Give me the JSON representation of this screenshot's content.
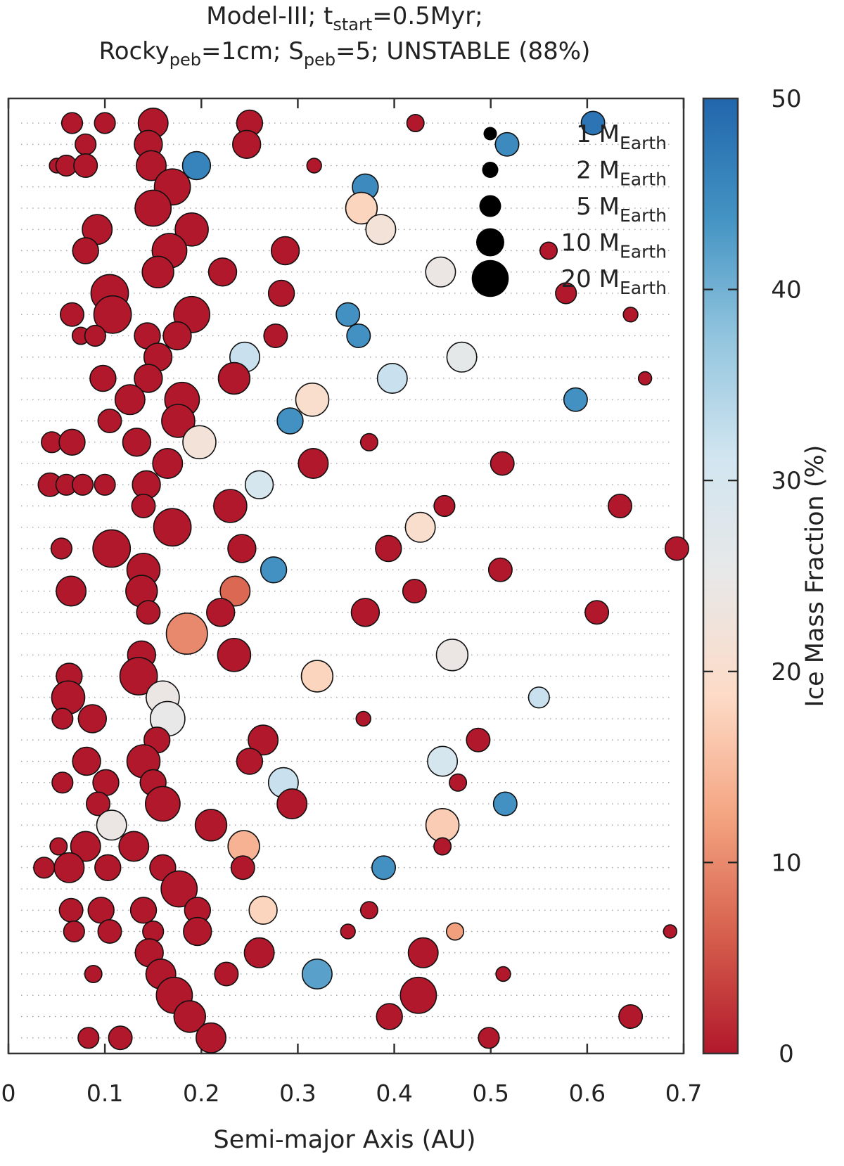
{
  "chart_data": {
    "type": "scatter",
    "title_line1": {
      "a": "Model-III; t",
      "sub": "start",
      "b": "=0.5Myr;"
    },
    "title_line2": {
      "a": "Rocky",
      "sub1": "peb",
      "b": "=1cm; S",
      "sub2": "peb",
      "c": "=5; UNSTABLE (88%)"
    },
    "xlabel": "Semi-major Axis (AU)",
    "xlim": [
      0,
      0.7
    ],
    "xticks": [
      "0",
      "0.1",
      "0.2",
      "0.3",
      "0.4",
      "0.5",
      "0.6",
      "0.7"
    ],
    "n_systems": 44,
    "grid": "dotted horizontal rows",
    "colorbar": {
      "label": "Ice Mass Fraction (%)",
      "range": [
        0,
        50
      ],
      "ticks": [
        "0",
        "10",
        "20",
        "30",
        "40",
        "50"
      ],
      "colormap": [
        "#b2182b",
        "#d6604d",
        "#f4a582",
        "#fddbc7",
        "#e8e8e8",
        "#d1e5f0",
        "#92c5de",
        "#4393c3",
        "#2166ac"
      ]
    },
    "size_legend": [
      {
        "label": "1 M",
        "sub": "Earth",
        "mass": 1
      },
      {
        "label": "2 M",
        "sub": "Earth",
        "mass": 2
      },
      {
        "label": "5 M",
        "sub": "Earth",
        "mass": 5
      },
      {
        "label": "10 M",
        "sub": "Earth",
        "mass": 10
      },
      {
        "label": "20 M",
        "sub": "Earth",
        "mass": 20
      }
    ],
    "systems": [
      [
        [
          0.066,
          2,
          0
        ],
        [
          0.1,
          2,
          0
        ],
        [
          0.15,
          6,
          0
        ],
        [
          0.25,
          4,
          0
        ],
        [
          0.422,
          1,
          0
        ],
        [
          0.606,
          3,
          48
        ]
      ],
      [
        [
          0.08,
          2,
          0
        ],
        [
          0.145,
          5,
          0
        ],
        [
          0.247,
          5,
          0
        ],
        [
          0.517,
          3,
          45
        ]
      ],
      [
        [
          0.05,
          0.5,
          0
        ],
        [
          0.06,
          2,
          0
        ],
        [
          0.08,
          3,
          0
        ],
        [
          0.148,
          6,
          0
        ],
        [
          0.195,
          5,
          46
        ],
        [
          0.317,
          0.5,
          0
        ]
      ],
      [
        [
          0.17,
          10,
          0
        ],
        [
          0.37,
          4,
          45
        ]
      ],
      [
        [
          0.15,
          10,
          0
        ],
        [
          0.366,
          7,
          18
        ]
      ],
      [
        [
          0.092,
          6,
          0
        ],
        [
          0.19,
          8,
          0
        ],
        [
          0.386,
          6,
          22
        ]
      ],
      [
        [
          0.08,
          4,
          0
        ],
        [
          0.167,
          9,
          0
        ],
        [
          0.287,
          5,
          0
        ],
        [
          0.56,
          1,
          0
        ]
      ],
      [
        [
          0.155,
          7,
          0
        ],
        [
          0.222,
          5,
          0
        ],
        [
          0.448,
          6,
          24
        ]
      ],
      [
        [
          0.105,
          11,
          0
        ],
        [
          0.283,
          4,
          0
        ],
        [
          0.578,
          2,
          0
        ]
      ],
      [
        [
          0.066,
          3,
          0
        ],
        [
          0.108,
          11,
          0
        ],
        [
          0.19,
          10,
          0
        ],
        [
          0.352,
          3,
          44
        ],
        [
          0.645,
          0.5,
          0
        ]
      ],
      [
        [
          0.075,
          1,
          0
        ],
        [
          0.09,
          2,
          0
        ],
        [
          0.144,
          4,
          0
        ],
        [
          0.175,
          5,
          0
        ],
        [
          0.277,
          3,
          0
        ],
        [
          0.363,
          3,
          44
        ]
      ],
      [
        [
          0.155,
          5,
          0
        ],
        [
          0.245,
          6,
          32
        ],
        [
          0.47,
          6,
          26
        ]
      ],
      [
        [
          0.098,
          4,
          0
        ],
        [
          0.145,
          5,
          0
        ],
        [
          0.234,
          7,
          0
        ],
        [
          0.398,
          6,
          32
        ],
        [
          0.66,
          0.3,
          0
        ]
      ],
      [
        [
          0.126,
          6,
          0
        ],
        [
          0.18,
          9,
          0
        ],
        [
          0.315,
          8,
          20
        ],
        [
          0.588,
          3,
          44
        ]
      ],
      [
        [
          0.105,
          3,
          0
        ],
        [
          0.176,
          8,
          0
        ],
        [
          0.292,
          4,
          44
        ]
      ],
      [
        [
          0.045,
          2,
          0
        ],
        [
          0.066,
          4,
          0
        ],
        [
          0.133,
          5,
          0
        ],
        [
          0.198,
          8,
          22
        ],
        [
          0.374,
          1,
          0
        ]
      ],
      [
        [
          0.165,
          6,
          0
        ],
        [
          0.316,
          6,
          0
        ],
        [
          0.512,
          3,
          0
        ]
      ],
      [
        [
          0.043,
          3,
          0
        ],
        [
          0.06,
          2,
          0
        ],
        [
          0.077,
          2,
          0
        ],
        [
          0.1,
          2,
          0
        ],
        [
          0.143,
          5,
          0
        ],
        [
          0.26,
          5,
          30
        ]
      ],
      [
        [
          0.14,
          3,
          0
        ],
        [
          0.23,
          8,
          0
        ],
        [
          0.452,
          2,
          0
        ],
        [
          0.634,
          3,
          0
        ]
      ],
      [
        [
          0.17,
          11,
          0
        ],
        [
          0.427,
          6,
          20
        ]
      ],
      [
        [
          0.055,
          2,
          0
        ],
        [
          0.107,
          11,
          0
        ],
        [
          0.242,
          5,
          0
        ],
        [
          0.394,
          4,
          0
        ],
        [
          0.693,
          3,
          0
        ]
      ],
      [
        [
          0.14,
          8,
          0
        ],
        [
          0.275,
          4,
          44
        ],
        [
          0.51,
          3,
          0
        ]
      ],
      [
        [
          0.065,
          6,
          0
        ],
        [
          0.138,
          7,
          0
        ],
        [
          0.235,
          6,
          7
        ],
        [
          0.421,
          3,
          0
        ]
      ],
      [
        [
          0.145,
          3,
          0
        ],
        [
          0.22,
          5,
          0
        ],
        [
          0.37,
          5,
          0
        ],
        [
          0.61,
          3,
          0
        ]
      ],
      [
        [
          0.185,
          14,
          10
        ]
      ],
      [
        [
          0.138,
          5,
          0
        ],
        [
          0.234,
          8,
          0
        ],
        [
          0.46,
          7,
          24
        ]
      ],
      [
        [
          0.063,
          4,
          0
        ],
        [
          0.135,
          11,
          0
        ],
        [
          0.32,
          7,
          18
        ]
      ],
      [
        [
          0.062,
          8,
          0
        ],
        [
          0.16,
          8,
          24
        ],
        [
          0.55,
          2,
          32
        ]
      ],
      [
        [
          0.056,
          2,
          0
        ],
        [
          0.087,
          5,
          0
        ],
        [
          0.165,
          9,
          25
        ],
        [
          0.368,
          0.5,
          0
        ]
      ],
      [
        [
          0.154,
          4,
          0
        ],
        [
          0.264,
          6,
          0
        ],
        [
          0.487,
          3,
          0
        ]
      ],
      [
        [
          0.081,
          5,
          0
        ],
        [
          0.14,
          8,
          0
        ],
        [
          0.25,
          4,
          0
        ],
        [
          0.45,
          6,
          30
        ]
      ],
      [
        [
          0.056,
          2,
          0
        ],
        [
          0.101,
          4,
          0
        ],
        [
          0.15,
          4,
          0
        ],
        [
          0.285,
          6,
          32
        ],
        [
          0.466,
          1,
          0
        ]
      ],
      [
        [
          0.093,
          3,
          0
        ],
        [
          0.16,
          9,
          0
        ],
        [
          0.294,
          6,
          0
        ],
        [
          0.515,
          3,
          44
        ]
      ],
      [
        [
          0.107,
          6,
          24
        ],
        [
          0.21,
          7,
          0
        ],
        [
          0.45,
          8,
          17
        ]
      ],
      [
        [
          0.052,
          1,
          0
        ],
        [
          0.08,
          6,
          0
        ],
        [
          0.13,
          6,
          0
        ],
        [
          0.244,
          7,
          14
        ],
        [
          0.45,
          1,
          0
        ]
      ],
      [
        [
          0.037,
          2,
          0
        ],
        [
          0.063,
          6,
          0
        ],
        [
          0.103,
          4,
          0
        ],
        [
          0.16,
          4,
          0
        ],
        [
          0.243,
          3,
          0
        ],
        [
          0.389,
          3,
          44
        ]
      ],
      [
        [
          0.177,
          10,
          0
        ]
      ],
      [
        [
          0.065,
          3,
          0
        ],
        [
          0.096,
          4,
          0
        ],
        [
          0.14,
          4,
          0
        ],
        [
          0.196,
          4,
          0
        ],
        [
          0.264,
          5,
          18
        ],
        [
          0.374,
          1,
          0
        ]
      ],
      [
        [
          0.068,
          2,
          0
        ],
        [
          0.105,
          3,
          0
        ],
        [
          0.15,
          2,
          0
        ],
        [
          0.196,
          5,
          0
        ],
        [
          0.352,
          0.5,
          0
        ],
        [
          0.463,
          1,
          12
        ],
        [
          0.686,
          0.3,
          0
        ]
      ],
      [
        [
          0.146,
          5,
          0
        ],
        [
          0.26,
          6,
          0
        ],
        [
          0.43,
          6,
          0
        ]
      ],
      [
        [
          0.088,
          1,
          0
        ],
        [
          0.158,
          6,
          0
        ],
        [
          0.226,
          3,
          0
        ],
        [
          0.32,
          6,
          42
        ],
        [
          0.513,
          0.5,
          0
        ]
      ],
      [
        [
          0.172,
          10,
          0
        ],
        [
          0.425,
          10,
          0
        ]
      ],
      [
        [
          0.188,
          7,
          0
        ],
        [
          0.395,
          4,
          0
        ],
        [
          0.645,
          3,
          0
        ]
      ],
      [
        [
          0.083,
          2,
          0
        ],
        [
          0.116,
          3,
          0
        ],
        [
          0.21,
          6,
          0
        ],
        [
          0.498,
          2,
          0
        ]
      ]
    ]
  }
}
